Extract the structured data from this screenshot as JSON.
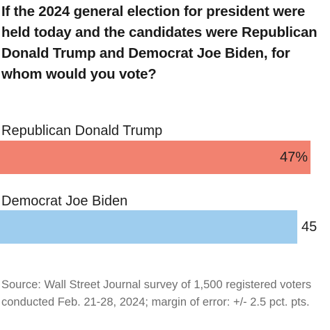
{
  "chart_data": {
    "type": "bar",
    "orientation": "horizontal",
    "title": "If the 2024 general election for president were held today and the candidates were Republican Donald Trump and Democrat Joe Biden, for whom would you vote?",
    "categories": [
      "Republican Donald Trump",
      "Democrat Joe Biden"
    ],
    "values": [
      47,
      45
    ],
    "value_labels": [
      "47%",
      "45"
    ],
    "colors": [
      "#f28270",
      "#9ecdee"
    ],
    "xlim": [
      0,
      50
    ],
    "grid": false,
    "legend": "none",
    "source": "Source: Wall Street Journal survey of 1,500 registered voters conducted Feb. 21-28, 2024; margin of error: +/- 2.5 pct. pts."
  }
}
